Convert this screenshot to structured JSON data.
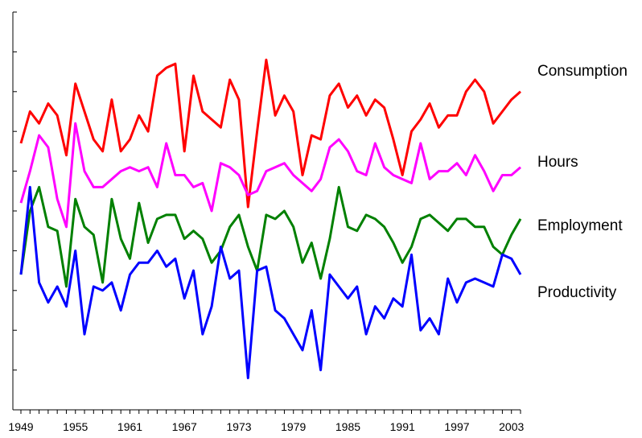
{
  "chart_data": {
    "type": "line",
    "title": "",
    "xlabel": "",
    "ylabel": "",
    "x": [
      1949,
      1950,
      1951,
      1952,
      1953,
      1954,
      1955,
      1956,
      1957,
      1958,
      1959,
      1960,
      1961,
      1962,
      1963,
      1964,
      1965,
      1966,
      1967,
      1968,
      1969,
      1970,
      1971,
      1972,
      1973,
      1974,
      1975,
      1976,
      1977,
      1978,
      1979,
      1980,
      1981,
      1982,
      1983,
      1984,
      1985,
      1986,
      1987,
      1988,
      1989,
      1990,
      1991,
      1992,
      1993,
      1994,
      1995,
      1996,
      1997,
      1998,
      1999,
      2000,
      2001,
      2002,
      2003,
      2004
    ],
    "x_ticks": [
      "1949",
      "1955",
      "1961",
      "1967",
      "1973",
      "1979",
      "1985",
      "1991",
      "1997",
      "2003"
    ],
    "xlim": [
      1949,
      2004
    ],
    "ylim": [
      0,
      10
    ],
    "y_tick_count": 11,
    "y_tick_labels_shown": false,
    "legend": "labels at right end of lines",
    "series": [
      {
        "name": "Consumption",
        "color": "#ff0000",
        "values": [
          6.7,
          7.5,
          7.2,
          7.7,
          7.4,
          6.4,
          8.2,
          7.5,
          6.8,
          6.5,
          7.8,
          6.5,
          6.8,
          7.4,
          7.0,
          8.4,
          8.6,
          8.7,
          6.5,
          8.4,
          7.5,
          7.3,
          7.1,
          8.3,
          7.8,
          5.1,
          7.0,
          8.8,
          7.4,
          7.9,
          7.5,
          5.9,
          6.9,
          6.8,
          7.9,
          8.2,
          7.6,
          7.9,
          7.4,
          7.8,
          7.6,
          6.8,
          5.9,
          7.0,
          7.3,
          7.7,
          7.1,
          7.4,
          7.4,
          8.0,
          8.3,
          8.0,
          7.2,
          7.5,
          7.8,
          8.0
        ]
      },
      {
        "name": "Hours",
        "color": "#ff00ff",
        "values": [
          5.2,
          6.0,
          6.9,
          6.6,
          5.3,
          4.6,
          7.2,
          6.0,
          5.6,
          5.6,
          5.8,
          6.0,
          6.1,
          6.0,
          6.1,
          5.6,
          6.7,
          5.9,
          5.9,
          5.6,
          5.7,
          5.0,
          6.2,
          6.1,
          5.9,
          5.4,
          5.5,
          6.0,
          6.1,
          6.2,
          5.9,
          5.7,
          5.5,
          5.8,
          6.6,
          6.8,
          6.5,
          6.0,
          5.9,
          6.7,
          6.1,
          5.9,
          5.8,
          5.7,
          6.7,
          5.8,
          6.0,
          6.0,
          6.2,
          5.9,
          6.4,
          6.0,
          5.5,
          5.9,
          5.9,
          6.1
        ]
      },
      {
        "name": "Employment",
        "color": "#008000",
        "values": [
          3.4,
          5.0,
          5.6,
          4.6,
          4.5,
          3.1,
          5.3,
          4.6,
          4.4,
          3.2,
          5.3,
          4.3,
          3.8,
          5.2,
          4.2,
          4.8,
          4.9,
          4.9,
          4.3,
          4.5,
          4.3,
          3.7,
          4.0,
          4.6,
          4.9,
          4.1,
          3.5,
          4.9,
          4.8,
          5.0,
          4.6,
          3.7,
          4.2,
          3.3,
          4.3,
          5.6,
          4.6,
          4.5,
          4.9,
          4.8,
          4.6,
          4.2,
          3.7,
          4.1,
          4.8,
          4.9,
          4.7,
          4.5,
          4.8,
          4.8,
          4.6,
          4.6,
          4.1,
          3.9,
          4.4,
          4.8
        ]
      },
      {
        "name": "Productivity",
        "color": "#0000ff",
        "values": [
          3.4,
          5.6,
          3.2,
          2.7,
          3.1,
          2.6,
          4.0,
          1.9,
          3.1,
          3.0,
          3.2,
          2.5,
          3.4,
          3.7,
          3.7,
          4.0,
          3.6,
          3.8,
          2.8,
          3.5,
          1.9,
          2.6,
          4.1,
          3.3,
          3.5,
          0.8,
          3.5,
          3.6,
          2.5,
          2.3,
          1.9,
          1.5,
          2.5,
          1.0,
          3.4,
          3.1,
          2.8,
          3.1,
          1.9,
          2.6,
          2.3,
          2.8,
          2.6,
          3.9,
          2.0,
          2.3,
          1.9,
          3.3,
          2.7,
          3.2,
          3.3,
          3.2,
          3.1,
          3.9,
          3.8,
          3.4
        ]
      }
    ]
  }
}
